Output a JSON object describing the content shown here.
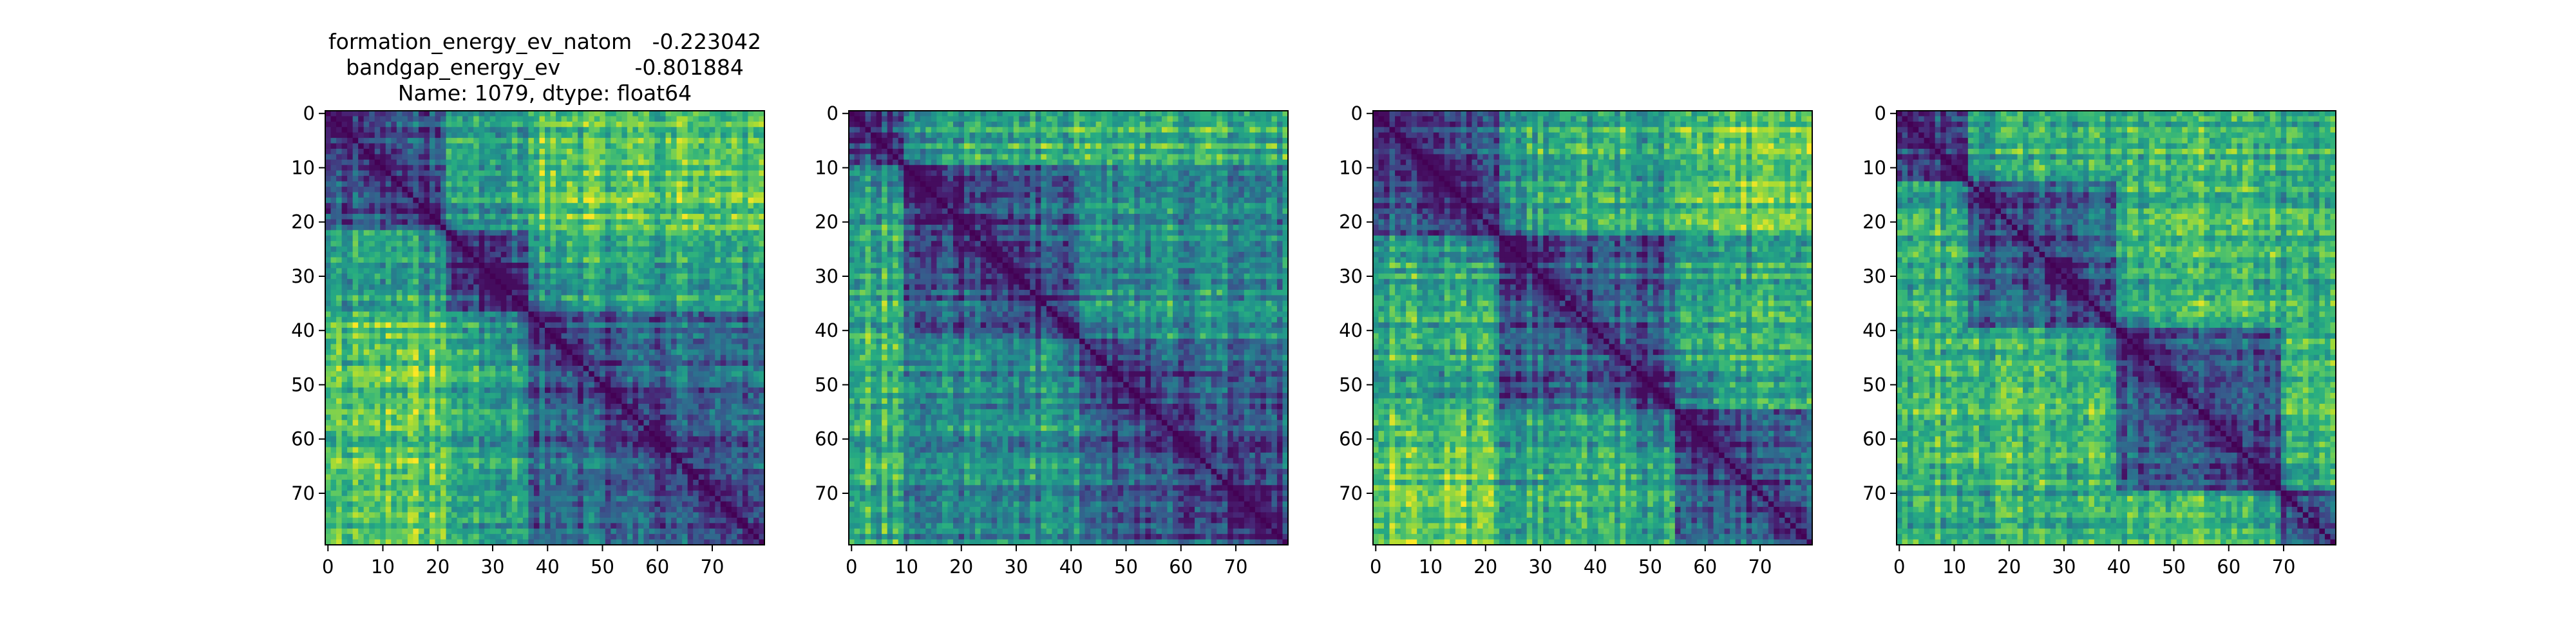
{
  "chart_data": [
    {
      "type": "heatmap",
      "title_lines": [
        "formation_energy_ev_natom   -0.223042",
        "bandgap_energy_ev           -0.801884",
        "Name: 1079, dtype: float64"
      ],
      "grid_size": 80,
      "x_ticks": [
        "0",
        "10",
        "20",
        "30",
        "40",
        "50",
        "60",
        "70"
      ],
      "y_ticks": [
        "0",
        "10",
        "20",
        "30",
        "40",
        "50",
        "60",
        "70"
      ],
      "xlim": [
        -0.5,
        79.5
      ],
      "ylim": [
        79.5,
        -0.5
      ],
      "colormap": "viridis",
      "diagonal": "minimum",
      "block_boundaries": [
        22,
        37
      ],
      "seed": 11
    },
    {
      "type": "heatmap",
      "title_lines": [],
      "grid_size": 80,
      "x_ticks": [
        "0",
        "10",
        "20",
        "30",
        "40",
        "50",
        "60",
        "70"
      ],
      "y_ticks": [
        "0",
        "10",
        "20",
        "30",
        "40",
        "50",
        "60",
        "70"
      ],
      "xlim": [
        -0.5,
        79.5
      ],
      "ylim": [
        79.5,
        -0.5
      ],
      "colormap": "viridis",
      "diagonal": "minimum",
      "block_boundaries": [
        10,
        42
      ],
      "seed": 27
    },
    {
      "type": "heatmap",
      "title_lines": [],
      "grid_size": 80,
      "x_ticks": [
        "0",
        "10",
        "20",
        "30",
        "40",
        "50",
        "60",
        "70"
      ],
      "y_ticks": [
        "0",
        "10",
        "20",
        "30",
        "40",
        "50",
        "60",
        "70"
      ],
      "xlim": [
        -0.5,
        79.5
      ],
      "ylim": [
        79.5,
        -0.5
      ],
      "colormap": "viridis",
      "diagonal": "minimum",
      "block_boundaries": [
        23,
        55
      ],
      "seed": 43
    },
    {
      "type": "heatmap",
      "title_lines": [],
      "grid_size": 80,
      "x_ticks": [
        "0",
        "10",
        "20",
        "30",
        "40",
        "50",
        "60",
        "70"
      ],
      "y_ticks": [
        "0",
        "10",
        "20",
        "30",
        "40",
        "50",
        "60",
        "70"
      ],
      "xlim": [
        -0.5,
        79.5
      ],
      "ylim": [
        79.5,
        -0.5
      ],
      "colormap": "viridis",
      "diagonal": "minimum",
      "block_boundaries": [
        13,
        40,
        70
      ],
      "seed": 61
    }
  ],
  "colors": {
    "viridis_low": "#440154",
    "viridis_mid": "#21918c",
    "viridis_high": "#fde725",
    "axis": "#000000",
    "background": "#ffffff"
  }
}
